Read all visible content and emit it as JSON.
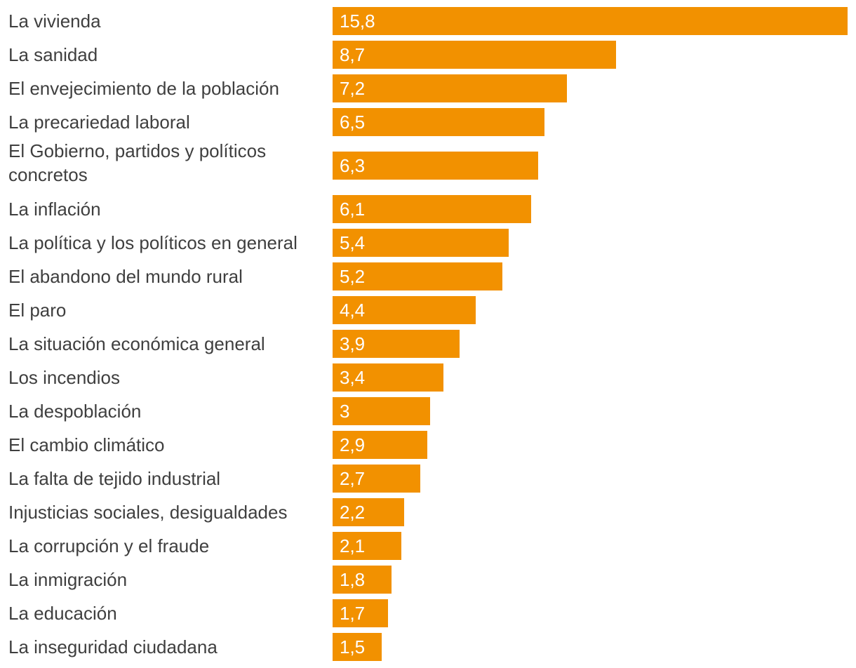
{
  "colors": {
    "bar": "#f29100",
    "label_text": "#3f3f3f",
    "value_text": "#ffffff",
    "background": "#ffffff"
  },
  "chart_data": {
    "type": "bar",
    "orientation": "horizontal",
    "title": "",
    "xlabel": "",
    "ylabel": "",
    "grid": false,
    "legend": "none",
    "xlim": [
      0,
      15.8
    ],
    "categories": [
      "La vivienda",
      "La sanidad",
      "El envejecimiento de la población",
      "La precariedad laboral",
      "El Gobierno, partidos y políticos concretos",
      "La inflación",
      "La política y los políticos en general",
      "El abandono del mundo rural",
      "El paro",
      "La situación económica general",
      "Los incendios",
      "La despoblación",
      "El cambio climático",
      "La falta de tejido industrial",
      "Injusticias sociales, desigualdades",
      "La corrupción y el fraude",
      "La inmigración",
      "La educación",
      "La inseguridad ciudadana"
    ],
    "values": [
      15.8,
      8.7,
      7.2,
      6.5,
      6.3,
      6.1,
      5.4,
      5.2,
      4.4,
      3.9,
      3.4,
      3,
      2.9,
      2.7,
      2.2,
      2.1,
      1.8,
      1.7,
      1.5
    ],
    "value_labels": [
      "15,8",
      "8,7",
      "7,2",
      "6,5",
      "6,3",
      "6,1",
      "5,4",
      "5,2",
      "4,4",
      "3,9",
      "3,4",
      "3",
      "2,9",
      "2,7",
      "2,2",
      "2,1",
      "1,8",
      "1,7",
      "1,5"
    ]
  }
}
